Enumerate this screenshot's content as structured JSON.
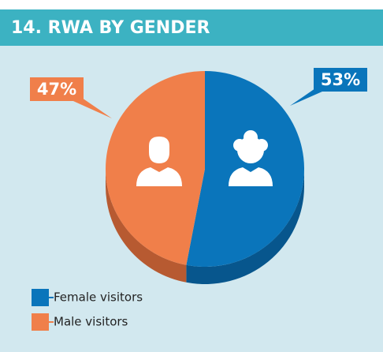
{
  "chart_data": {
    "type": "pie",
    "title": "14. RWA BY GENDER",
    "categories": [
      "Female visitors",
      "Male visitors"
    ],
    "values": [
      53,
      47
    ],
    "value_labels": [
      "53%",
      "47%"
    ],
    "colors": [
      "#0a75bb",
      "#f07f4a"
    ],
    "side_colors": [
      "#07568d",
      "#b75a31"
    ]
  }
}
